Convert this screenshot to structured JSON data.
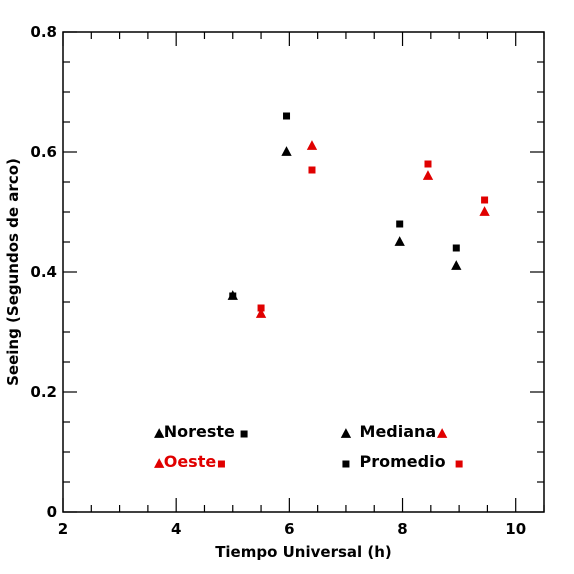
{
  "chart_data": {
    "type": "scatter",
    "xlabel": "Tiempo Universal (h)",
    "ylabel": "Seeing (Segundos de arco)",
    "xlim": [
      2,
      10.5
    ],
    "ylim": [
      0,
      0.8
    ],
    "xticks": [
      2,
      4,
      6,
      8,
      10
    ],
    "yticks": [
      0,
      0.2,
      0.4,
      0.6,
      0.8
    ],
    "ytick_labels": [
      "0",
      "0.2",
      "0.4",
      "0.6",
      "0.8"
    ],
    "colors": {
      "noreste": "#000000",
      "oeste": "#e00000"
    },
    "series": [
      {
        "site": "Noreste",
        "stat": "Mediana",
        "marker": "triangle",
        "color": "#000000",
        "points": [
          [
            5.0,
            0.36
          ],
          [
            5.95,
            0.6
          ],
          [
            7.95,
            0.45
          ],
          [
            8.95,
            0.41
          ]
        ]
      },
      {
        "site": "Noreste",
        "stat": "Promedio",
        "marker": "square",
        "color": "#000000",
        "points": [
          [
            5.0,
            0.36
          ],
          [
            5.95,
            0.66
          ],
          [
            7.95,
            0.48
          ],
          [
            8.95,
            0.44
          ]
        ]
      },
      {
        "site": "Oeste",
        "stat": "Mediana",
        "marker": "triangle",
        "color": "#e00000",
        "points": [
          [
            5.5,
            0.33
          ],
          [
            6.4,
            0.61
          ],
          [
            8.45,
            0.56
          ],
          [
            9.45,
            0.5
          ]
        ]
      },
      {
        "site": "Oeste",
        "stat": "Promedio",
        "marker": "square",
        "color": "#e00000",
        "points": [
          [
            5.5,
            0.34
          ],
          [
            6.4,
            0.57
          ],
          [
            8.45,
            0.58
          ],
          [
            9.45,
            0.52
          ]
        ]
      }
    ],
    "legend": {
      "sites": [
        "Noreste",
        "Oeste"
      ],
      "stats": [
        "Mediana",
        "Promedio"
      ]
    }
  }
}
